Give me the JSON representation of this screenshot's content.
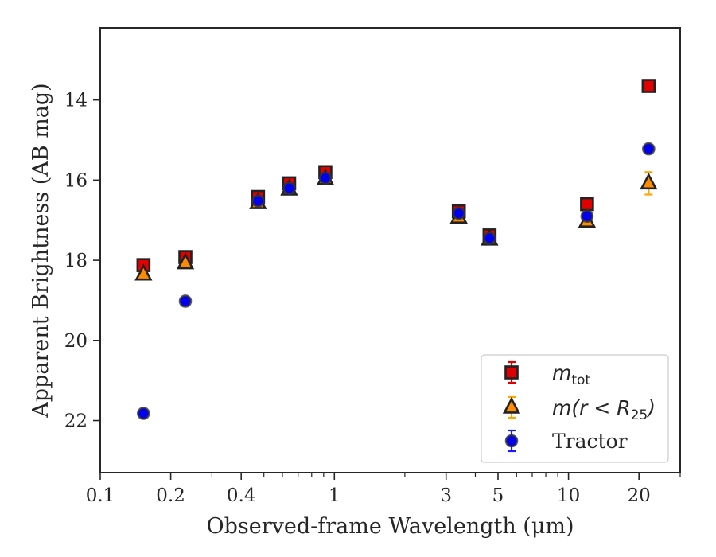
{
  "chart_data": {
    "type": "scatter",
    "title": "",
    "xlabel": "Observed-frame Wavelength (μm)",
    "ylabel": "Apparent Brightness (AB mag)",
    "xscale": "log",
    "xlim": [
      0.1,
      30
    ],
    "ylim": [
      23.3,
      12.2
    ],
    "y_inverted": true,
    "x_ticks": [
      0.1,
      0.2,
      0.4,
      1,
      3,
      5,
      10,
      20
    ],
    "x_tick_labels": [
      "0.1",
      "0.2",
      "0.4",
      "1",
      "3",
      "5",
      "10",
      "20"
    ],
    "y_ticks": [
      14,
      16,
      18,
      20,
      22
    ],
    "y_tick_labels": [
      "14",
      "16",
      "18",
      "20",
      "22"
    ],
    "grid": false,
    "legend_position": "lower-right",
    "series": [
      {
        "name": "m_tot",
        "legend_main": "m",
        "legend_sub": "tot",
        "marker": "square",
        "color": "#e00000",
        "errcolor": "#e00000",
        "x": [
          0.153,
          0.231,
          0.472,
          0.641,
          0.915,
          3.4,
          4.6,
          12.0,
          22.0
        ],
        "y": [
          18.12,
          17.92,
          16.42,
          16.08,
          15.8,
          16.78,
          17.38,
          16.6,
          13.65
        ]
      },
      {
        "name": "m(r < R25)",
        "legend_main": "m(r < R",
        "legend_sub": "25",
        "legend_close": ")",
        "marker": "triangle",
        "color": "#ff8c00",
        "errcolor": "#ffa500",
        "x": [
          0.153,
          0.231,
          0.472,
          0.641,
          0.915,
          3.4,
          4.6,
          12.0,
          22.0
        ],
        "y": [
          18.35,
          18.07,
          16.57,
          16.23,
          15.97,
          16.93,
          17.48,
          17.03,
          16.08
        ],
        "yerr": [
          0,
          0,
          0,
          0,
          0,
          0,
          0,
          0,
          0.28
        ]
      },
      {
        "name": "Tractor",
        "marker": "circle",
        "color": "#0000ee",
        "errcolor": "#1a1aff",
        "x": [
          0.153,
          0.231,
          0.472,
          0.641,
          0.915,
          3.4,
          4.6,
          12.0,
          22.0
        ],
        "y": [
          21.82,
          19.02,
          16.52,
          16.2,
          15.95,
          16.83,
          17.45,
          16.9,
          15.22
        ]
      }
    ]
  }
}
